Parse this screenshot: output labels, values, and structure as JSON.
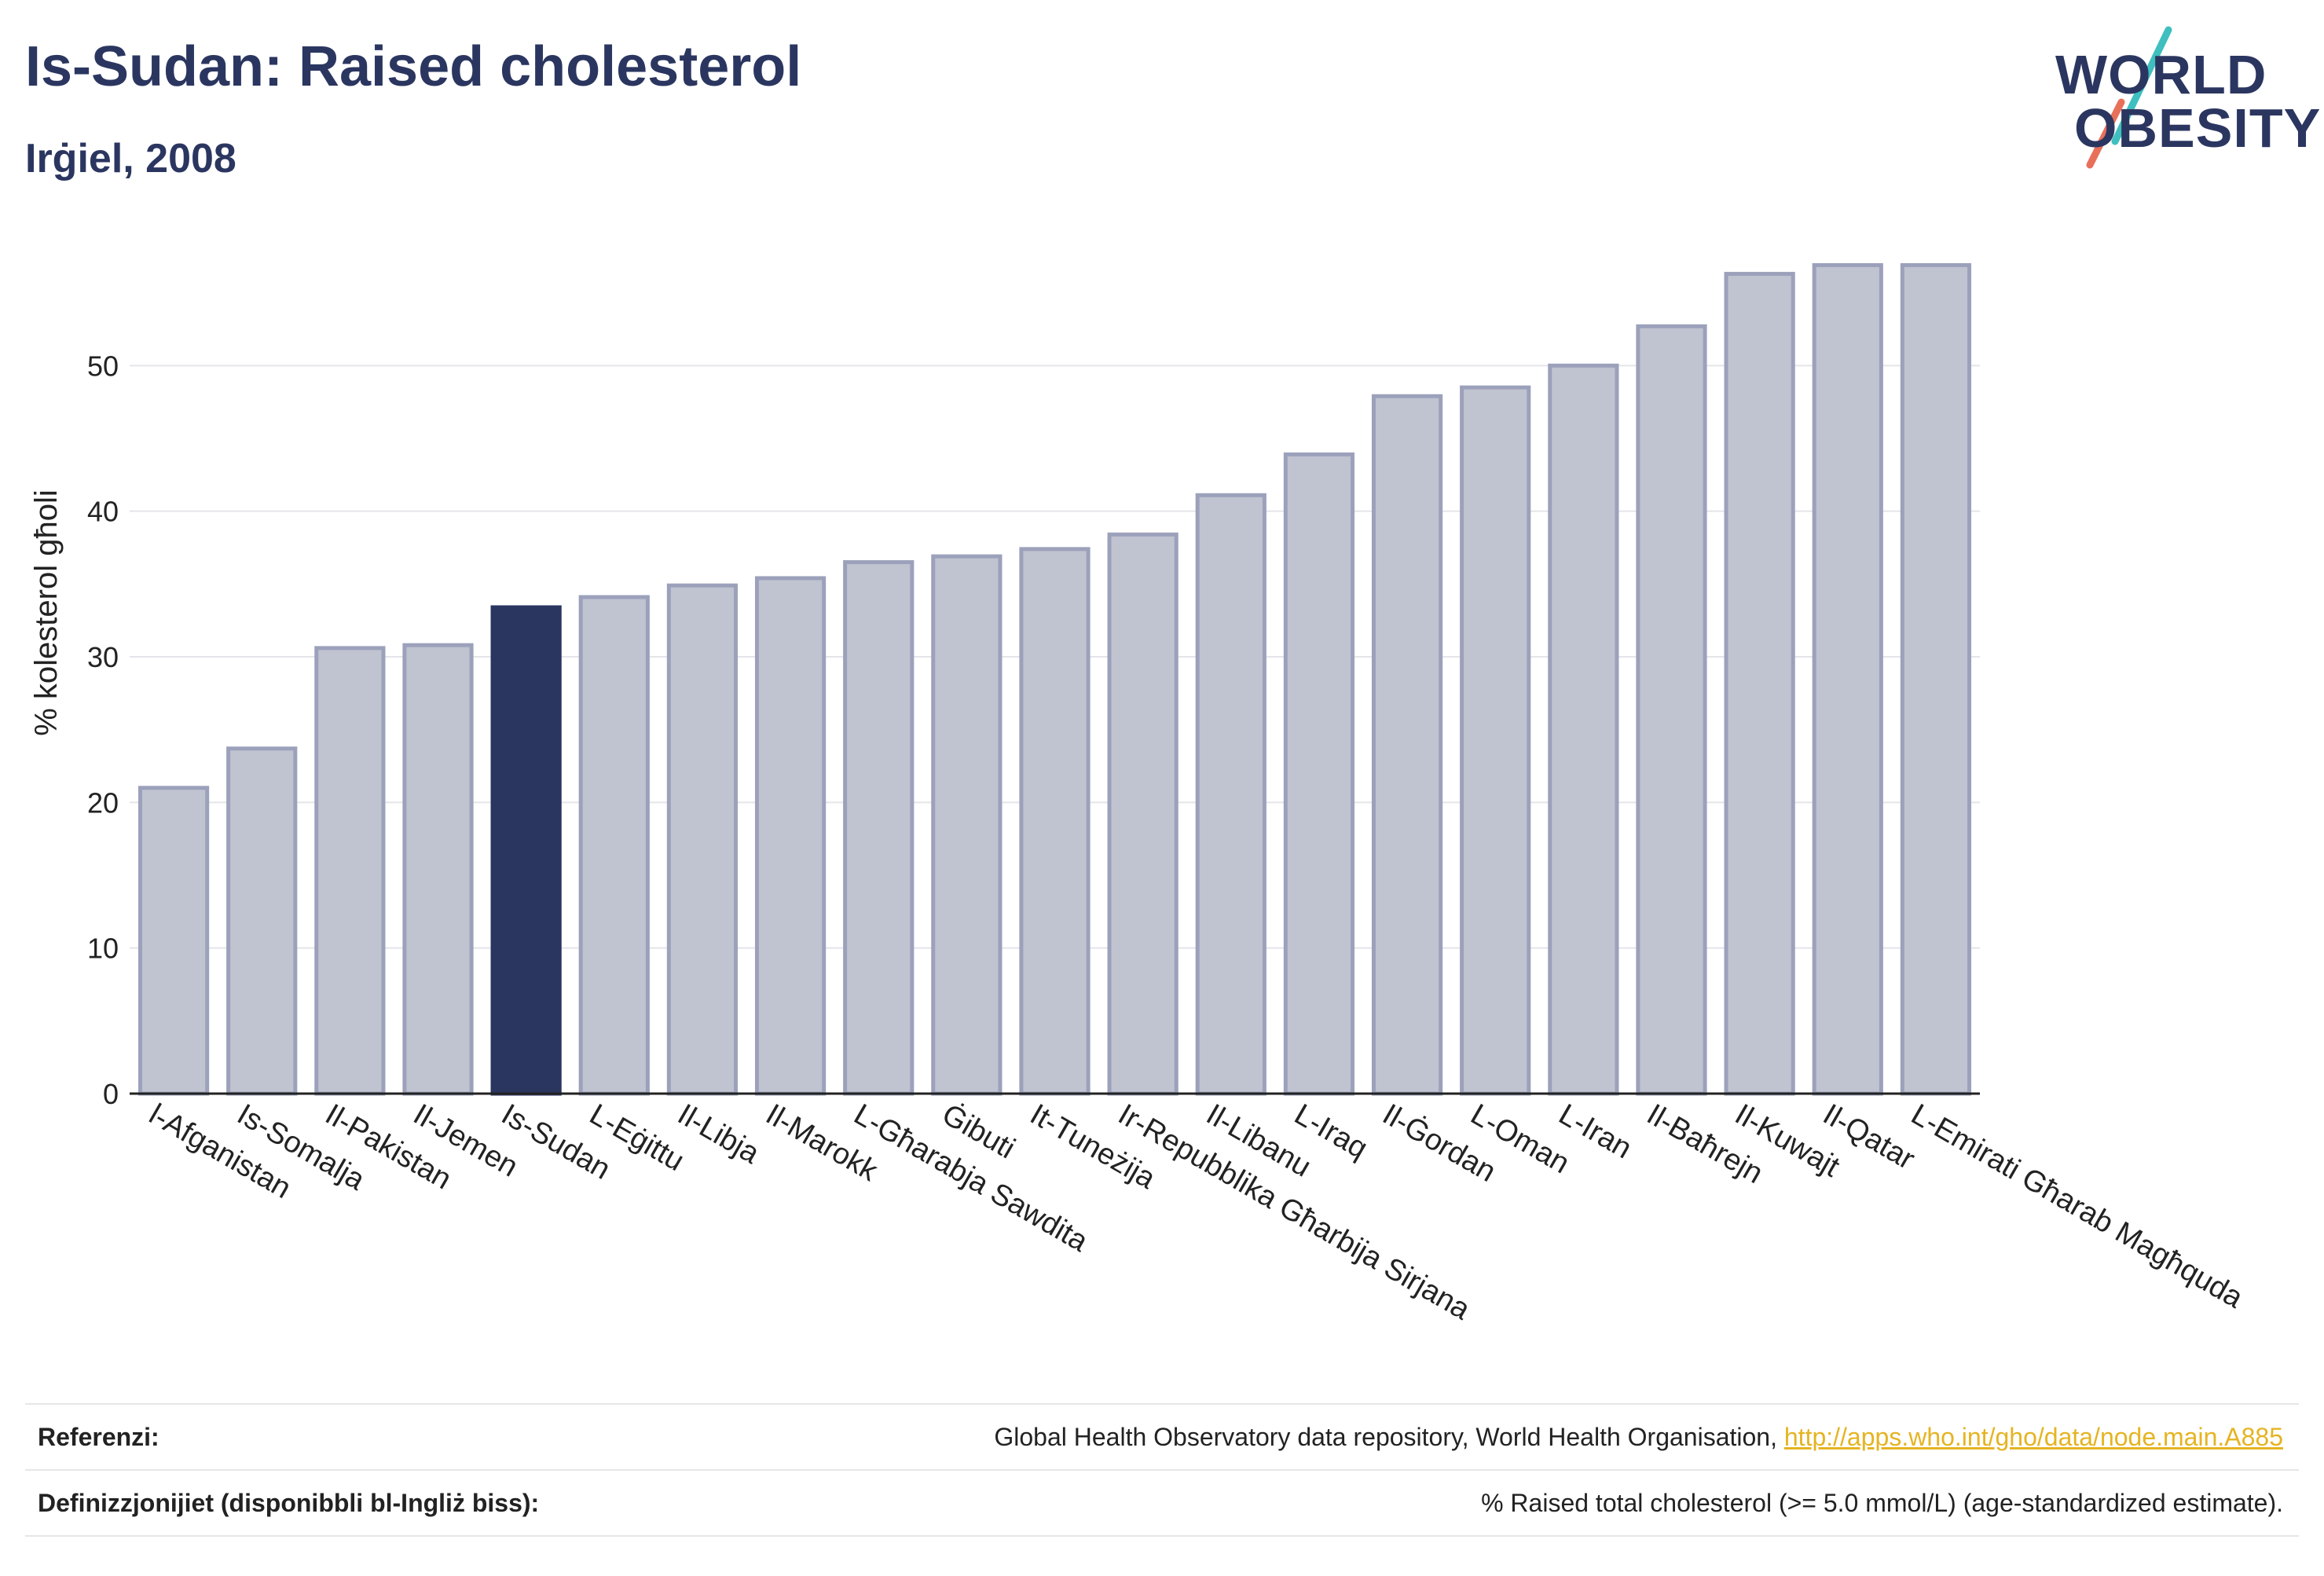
{
  "header": {
    "title": "Is-Sudan: Raised cholesterol",
    "subtitle": "Irġiel, 2008"
  },
  "logo": {
    "line1": "WORLD",
    "line2": "OBESITY",
    "slash_colors": [
      "#3fbfbf",
      "#e8705a"
    ]
  },
  "colors": {
    "bar_default": "#c0c3d0",
    "bar_border": "#9ca1bb",
    "bar_highlight": "#2b3660",
    "axis_text": "#222222",
    "grid": "#e4e4ea"
  },
  "chart_data": {
    "type": "bar",
    "title": "Is-Sudan: Raised cholesterol",
    "subtitle": "Irġiel, 2008",
    "xlabel": "",
    "ylabel": "% kolesterol għoli",
    "ylim": [
      0,
      60
    ],
    "yticks": [
      0,
      10,
      20,
      30,
      40,
      50
    ],
    "grid": true,
    "highlight": "Is-Sudan",
    "categories": [
      "l-Afganistan",
      "Is-Somalja",
      "Il-Pakistan",
      "Il-Jemen",
      "Is-Sudan",
      "L-Eġittu",
      "Il-Libja",
      "Il-Marokk",
      "L-Għarabja Sawdita",
      "Ġibuti",
      "It-Tuneżija",
      "Ir-Repubblika Għarbija Sirjana",
      "Il-Libanu",
      "L-Iraq",
      "Il-Ġordan",
      "L-Oman",
      "L-Iran",
      "Il-Baħrejn",
      "Il-Kuwajt",
      "Il-Qatar",
      "L-Emirati Għarab Magħquda"
    ],
    "values": [
      21.0,
      23.7,
      30.6,
      30.8,
      33.4,
      34.1,
      34.9,
      35.4,
      36.5,
      36.9,
      37.4,
      38.4,
      41.1,
      43.9,
      47.9,
      48.5,
      50.0,
      52.7,
      56.3,
      56.9,
      56.9
    ]
  },
  "footer": {
    "references_label": "Referenzi:",
    "references_text": "Global Health Observatory data repository, World Health Organisation, ",
    "references_link": "http://apps.who.int/gho/data/node.main.A885",
    "definitions_label": "Definizzjonijiet (disponibbli bl-Ingliż biss):",
    "definitions_text": "% Raised total cholesterol (>= 5.0 mmol/L) (age-standardized estimate)."
  }
}
